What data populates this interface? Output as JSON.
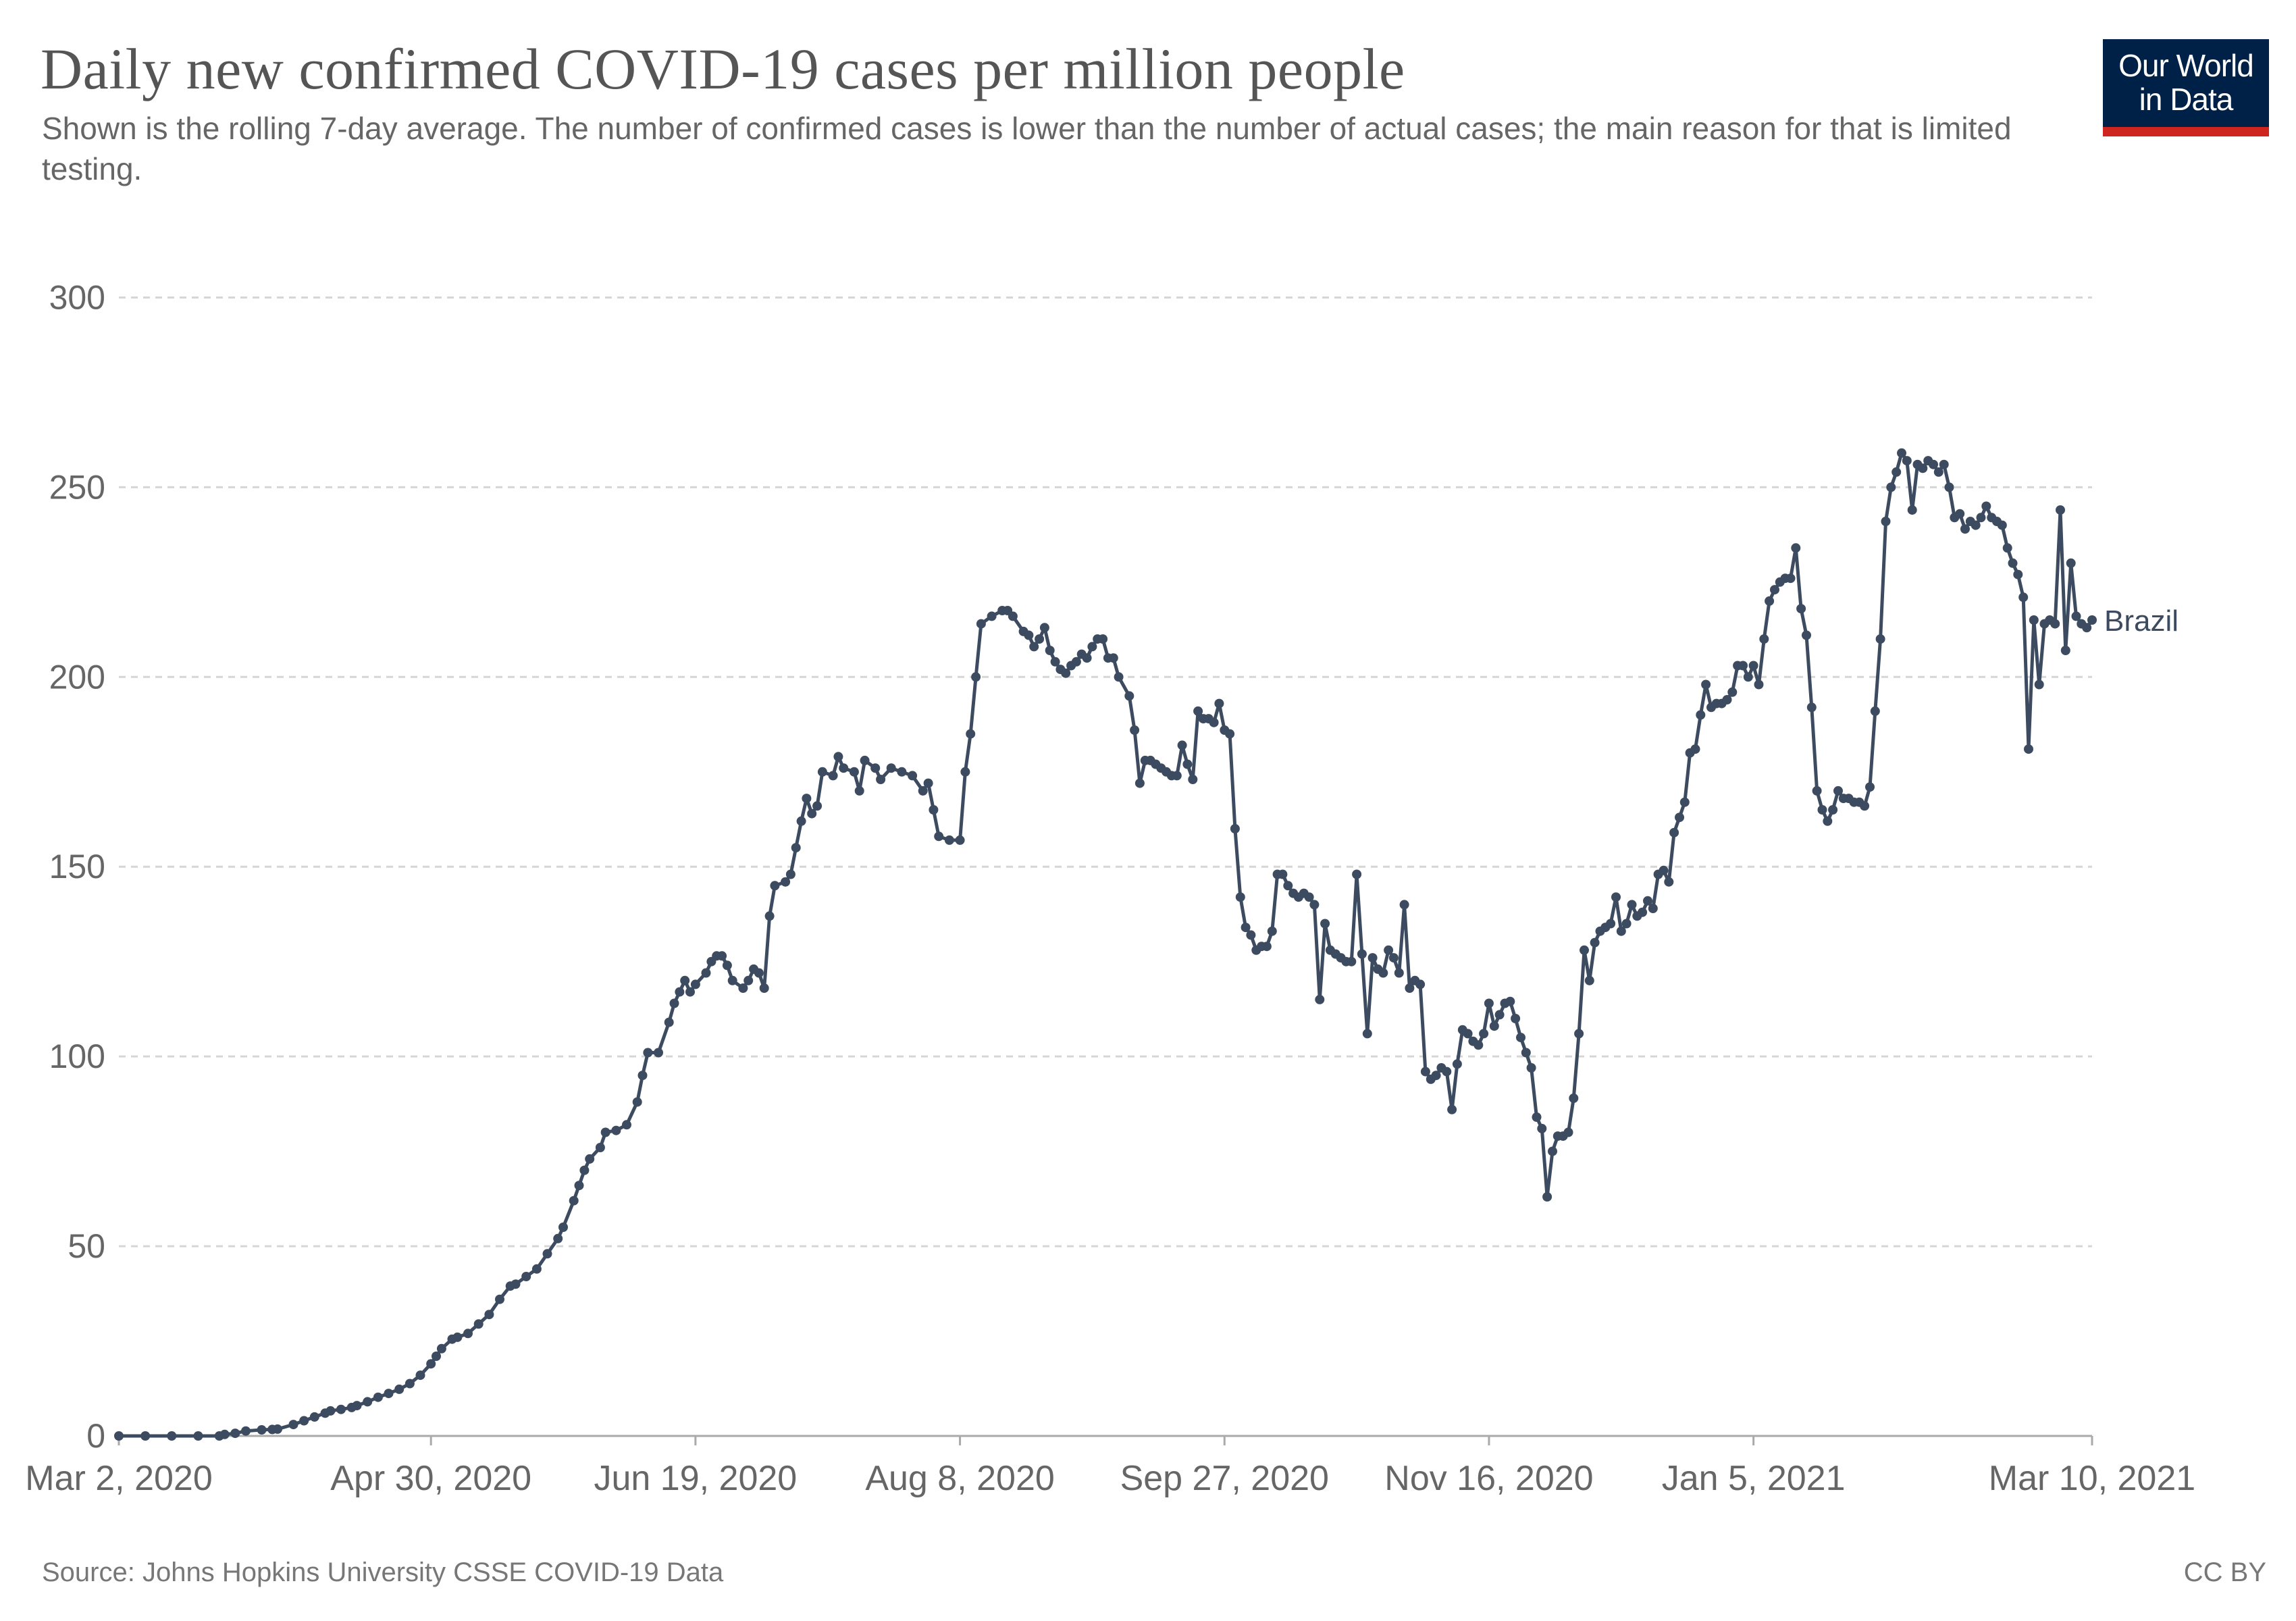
{
  "header": {
    "title": "Daily new confirmed COVID-19 cases per million people",
    "subtitle": "Shown is the rolling 7-day average. The number of confirmed cases is lower than the number of actual cases; the main reason for that is limited testing.",
    "logo_line1": "Our World",
    "logo_line2": "in Data"
  },
  "footer": {
    "source": "Source: Johns Hopkins University CSSE COVID-19 Data",
    "license": "CC BY"
  },
  "colors": {
    "series": "#3d4b60",
    "grid": "#d6d6d6",
    "axis": "#aaaaaa",
    "logo_bg": "#002147",
    "logo_bar": "#ce261e"
  },
  "chart_data": {
    "type": "line",
    "title": "Daily new confirmed COVID-19 cases per million people",
    "xlabel": "",
    "ylabel": "",
    "x_unit": "days since Mar 2, 2020",
    "xlim": [
      0,
      373
    ],
    "ylim": [
      0,
      325
    ],
    "yticks": [
      0,
      50,
      100,
      150,
      200,
      250,
      300
    ],
    "grid": "horizontal dashed",
    "xticks": [
      {
        "day": 0,
        "label": "Mar 2, 2020"
      },
      {
        "day": 59,
        "label": "Apr 30, 2020"
      },
      {
        "day": 109,
        "label": "Jun 19, 2020"
      },
      {
        "day": 159,
        "label": "Aug 8, 2020"
      },
      {
        "day": 209,
        "label": "Sep 27, 2020"
      },
      {
        "day": 259,
        "label": "Nov 16, 2020"
      },
      {
        "day": 309,
        "label": "Jan 5, 2021"
      },
      {
        "day": 373,
        "label": "Mar 10, 2021"
      }
    ],
    "series": [
      {
        "name": "Brazil",
        "points": [
          [
            0,
            0
          ],
          [
            5,
            0
          ],
          [
            10,
            0
          ],
          [
            15,
            0
          ],
          [
            19,
            0
          ],
          [
            20,
            0.4
          ],
          [
            22,
            0.7
          ],
          [
            24,
            1.3
          ],
          [
            27,
            1.6
          ],
          [
            29,
            1.7
          ],
          [
            30,
            1.8
          ],
          [
            33,
            3
          ],
          [
            35,
            4
          ],
          [
            37,
            5
          ],
          [
            39,
            6
          ],
          [
            40,
            6.6
          ],
          [
            42,
            7
          ],
          [
            44,
            7.5
          ],
          [
            45,
            8
          ],
          [
            47,
            9
          ],
          [
            49,
            10.2
          ],
          [
            51,
            11.2
          ],
          [
            53,
            12.3
          ],
          [
            55,
            13.8
          ],
          [
            57,
            16
          ],
          [
            59,
            19
          ],
          [
            60,
            21
          ],
          [
            61,
            23
          ],
          [
            63,
            25.5
          ],
          [
            64,
            26
          ],
          [
            66,
            27
          ],
          [
            68,
            29.5
          ],
          [
            70,
            32
          ],
          [
            72,
            36
          ],
          [
            74,
            39.5
          ],
          [
            75,
            40
          ],
          [
            77,
            42
          ],
          [
            79,
            44
          ],
          [
            81,
            48
          ],
          [
            83,
            52
          ],
          [
            84,
            55
          ],
          [
            86,
            62
          ],
          [
            87,
            66
          ],
          [
            88,
            70
          ],
          [
            89,
            73
          ],
          [
            91,
            76
          ],
          [
            92,
            80
          ],
          [
            94,
            80.5
          ],
          [
            96,
            82
          ],
          [
            98,
            88
          ],
          [
            99,
            95
          ],
          [
            100,
            101
          ],
          [
            102,
            101
          ],
          [
            104,
            109
          ],
          [
            105,
            114
          ],
          [
            106,
            117
          ],
          [
            107,
            120
          ],
          [
            108,
            117
          ],
          [
            109,
            119
          ],
          [
            111,
            122
          ],
          [
            112,
            125
          ],
          [
            113,
            126.5
          ],
          [
            114,
            126.5
          ],
          [
            115,
            124
          ],
          [
            116,
            120
          ],
          [
            118,
            118
          ],
          [
            119,
            120
          ],
          [
            120,
            123
          ],
          [
            121,
            122
          ],
          [
            122,
            118
          ],
          [
            123,
            137
          ],
          [
            124,
            145
          ],
          [
            126,
            146
          ],
          [
            127,
            148
          ],
          [
            128,
            155
          ],
          [
            129,
            162
          ],
          [
            130,
            168
          ],
          [
            131,
            164
          ],
          [
            132,
            166
          ],
          [
            133,
            175
          ],
          [
            135,
            174
          ],
          [
            136,
            179
          ],
          [
            137,
            176
          ],
          [
            139,
            175
          ],
          [
            140,
            170
          ],
          [
            141,
            178
          ],
          [
            143,
            176
          ],
          [
            144,
            173
          ],
          [
            146,
            176
          ],
          [
            148,
            175
          ],
          [
            150,
            174
          ],
          [
            152,
            170
          ],
          [
            153,
            172
          ],
          [
            154,
            165
          ],
          [
            155,
            158
          ],
          [
            157,
            157
          ],
          [
            159,
            157
          ],
          [
            160,
            175
          ],
          [
            161,
            185
          ],
          [
            162,
            200
          ],
          [
            163,
            214
          ],
          [
            165,
            216
          ],
          [
            167,
            217.5
          ],
          [
            168,
            217.5
          ],
          [
            169,
            216
          ],
          [
            171,
            212
          ],
          [
            172,
            211
          ],
          [
            173,
            208
          ],
          [
            174,
            210
          ],
          [
            175,
            213
          ],
          [
            176,
            207
          ],
          [
            177,
            204
          ],
          [
            178,
            202
          ],
          [
            179,
            201
          ],
          [
            180,
            203
          ],
          [
            181,
            204
          ],
          [
            182,
            206
          ],
          [
            183,
            205
          ],
          [
            184,
            208
          ],
          [
            185,
            210
          ],
          [
            186,
            210
          ],
          [
            187,
            205
          ],
          [
            188,
            205
          ],
          [
            189,
            200
          ],
          [
            191,
            195
          ],
          [
            192,
            186
          ],
          [
            193,
            172
          ],
          [
            194,
            178
          ],
          [
            195,
            178
          ],
          [
            196,
            177
          ],
          [
            197,
            176
          ],
          [
            198,
            175
          ],
          [
            199,
            174
          ],
          [
            200,
            174
          ],
          [
            201,
            182
          ],
          [
            202,
            177
          ],
          [
            203,
            173
          ],
          [
            204,
            191
          ],
          [
            205,
            189
          ],
          [
            206,
            189
          ],
          [
            207,
            188
          ],
          [
            208,
            193
          ],
          [
            209,
            186
          ],
          [
            210,
            185
          ],
          [
            211,
            160
          ],
          [
            212,
            142
          ],
          [
            213,
            134
          ],
          [
            214,
            132
          ],
          [
            215,
            128
          ],
          [
            216,
            129
          ],
          [
            217,
            129
          ],
          [
            218,
            133
          ],
          [
            219,
            148
          ],
          [
            220,
            148
          ],
          [
            221,
            145
          ],
          [
            222,
            143
          ],
          [
            223,
            142
          ],
          [
            224,
            143
          ],
          [
            225,
            142
          ],
          [
            226,
            140
          ],
          [
            227,
            115
          ],
          [
            228,
            135
          ],
          [
            229,
            128
          ],
          [
            230,
            127
          ],
          [
            231,
            126
          ],
          [
            232,
            125
          ],
          [
            233,
            125
          ],
          [
            234,
            148
          ],
          [
            235,
            127
          ],
          [
            236,
            106
          ],
          [
            237,
            126
          ],
          [
            238,
            123
          ],
          [
            239,
            122
          ],
          [
            240,
            128
          ],
          [
            241,
            126
          ],
          [
            242,
            122
          ],
          [
            243,
            140
          ],
          [
            244,
            118
          ],
          [
            245,
            120
          ],
          [
            246,
            119
          ],
          [
            247,
            96
          ],
          [
            248,
            94
          ],
          [
            249,
            95
          ],
          [
            250,
            97
          ],
          [
            251,
            96
          ],
          [
            252,
            86
          ],
          [
            253,
            98
          ],
          [
            254,
            107
          ],
          [
            255,
            106
          ],
          [
            256,
            104
          ],
          [
            257,
            103
          ],
          [
            258,
            106
          ],
          [
            259,
            114
          ],
          [
            260,
            108
          ],
          [
            261,
            111
          ],
          [
            262,
            114
          ],
          [
            263,
            114.5
          ],
          [
            264,
            110
          ],
          [
            265,
            105
          ],
          [
            266,
            101
          ],
          [
            267,
            97
          ],
          [
            268,
            84
          ],
          [
            269,
            81
          ],
          [
            270,
            63
          ],
          [
            271,
            75
          ],
          [
            272,
            79
          ],
          [
            273,
            79
          ],
          [
            274,
            80
          ],
          [
            275,
            89
          ],
          [
            276,
            106
          ],
          [
            277,
            128
          ],
          [
            278,
            120
          ],
          [
            279,
            130
          ],
          [
            280,
            133
          ],
          [
            281,
            134
          ],
          [
            282,
            135
          ],
          [
            283,
            142
          ],
          [
            284,
            133
          ],
          [
            285,
            135
          ],
          [
            286,
            140
          ],
          [
            287,
            137
          ],
          [
            288,
            138
          ],
          [
            289,
            141
          ],
          [
            290,
            139
          ],
          [
            291,
            148
          ],
          [
            292,
            149
          ],
          [
            293,
            146
          ],
          [
            294,
            159
          ],
          [
            295,
            163
          ],
          [
            296,
            167
          ],
          [
            297,
            180
          ],
          [
            298,
            181
          ],
          [
            299,
            190
          ],
          [
            300,
            198
          ],
          [
            301,
            192
          ],
          [
            302,
            193
          ],
          [
            303,
            193
          ],
          [
            304,
            194
          ],
          [
            305,
            196
          ],
          [
            306,
            203
          ],
          [
            307,
            203
          ],
          [
            308,
            200
          ],
          [
            309,
            203
          ],
          [
            310,
            198
          ],
          [
            311,
            210
          ],
          [
            312,
            220
          ],
          [
            313,
            223
          ],
          [
            314,
            225
          ],
          [
            315,
            226
          ],
          [
            316,
            226
          ],
          [
            317,
            234
          ],
          [
            318,
            218
          ],
          [
            319,
            211
          ],
          [
            320,
            192
          ],
          [
            321,
            170
          ],
          [
            322,
            165
          ],
          [
            323,
            162
          ],
          [
            324,
            165
          ],
          [
            325,
            170
          ],
          [
            326,
            168
          ],
          [
            327,
            168
          ],
          [
            328,
            167
          ],
          [
            329,
            167
          ],
          [
            330,
            166
          ],
          [
            331,
            171
          ],
          [
            332,
            191
          ],
          [
            333,
            210
          ],
          [
            334,
            241
          ],
          [
            335,
            250
          ],
          [
            336,
            254
          ],
          [
            337,
            259
          ],
          [
            338,
            257
          ],
          [
            339,
            244
          ],
          [
            340,
            256
          ],
          [
            341,
            255
          ],
          [
            342,
            257
          ],
          [
            343,
            256
          ],
          [
            344,
            254
          ],
          [
            345,
            256
          ],
          [
            346,
            250
          ],
          [
            347,
            242
          ],
          [
            348,
            243
          ],
          [
            349,
            239
          ],
          [
            350,
            241
          ],
          [
            351,
            240
          ],
          [
            352,
            242
          ],
          [
            353,
            245
          ],
          [
            354,
            242
          ],
          [
            355,
            241
          ],
          [
            356,
            240
          ],
          [
            357,
            234
          ],
          [
            358,
            230
          ],
          [
            359,
            227
          ],
          [
            360,
            221
          ],
          [
            361,
            181
          ],
          [
            362,
            215
          ],
          [
            363,
            198
          ],
          [
            364,
            214
          ],
          [
            365,
            215
          ],
          [
            366,
            214
          ],
          [
            367,
            244
          ],
          [
            368,
            207
          ],
          [
            369,
            230
          ],
          [
            370,
            216
          ],
          [
            371,
            214
          ],
          [
            372,
            213
          ],
          [
            373,
            215
          ]
        ]
      }
    ]
  }
}
